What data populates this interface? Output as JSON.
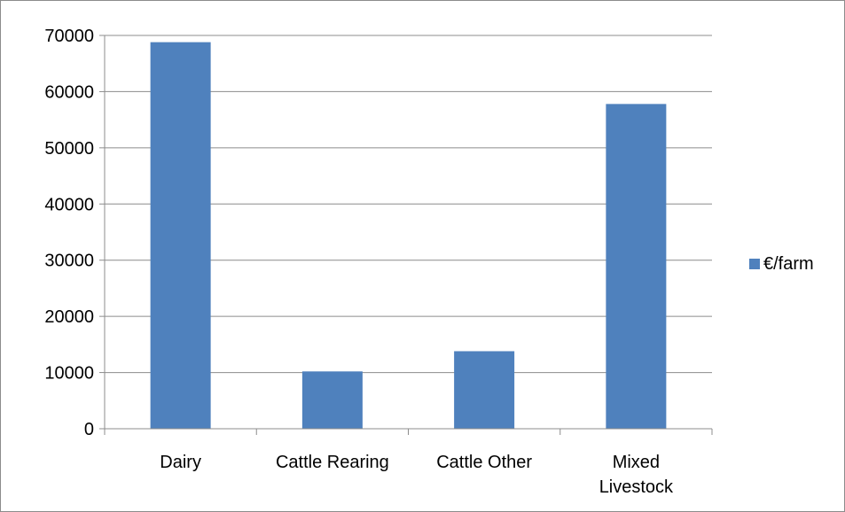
{
  "chart_data": {
    "type": "bar",
    "categories": [
      [
        "Dairy"
      ],
      [
        "Cattle Rearing"
      ],
      [
        "Cattle Other"
      ],
      [
        "Mixed",
        "Livestock"
      ]
    ],
    "series": [
      {
        "name": "€/farm",
        "values": [
          68800,
          10200,
          13800,
          57800
        ],
        "color": "#4f81bd"
      }
    ],
    "ylim": [
      0,
      70000
    ],
    "yticks": [
      "0",
      "10000",
      "20000",
      "30000",
      "40000",
      "50000",
      "60000",
      "70000"
    ],
    "grid": true,
    "legend": "right"
  }
}
